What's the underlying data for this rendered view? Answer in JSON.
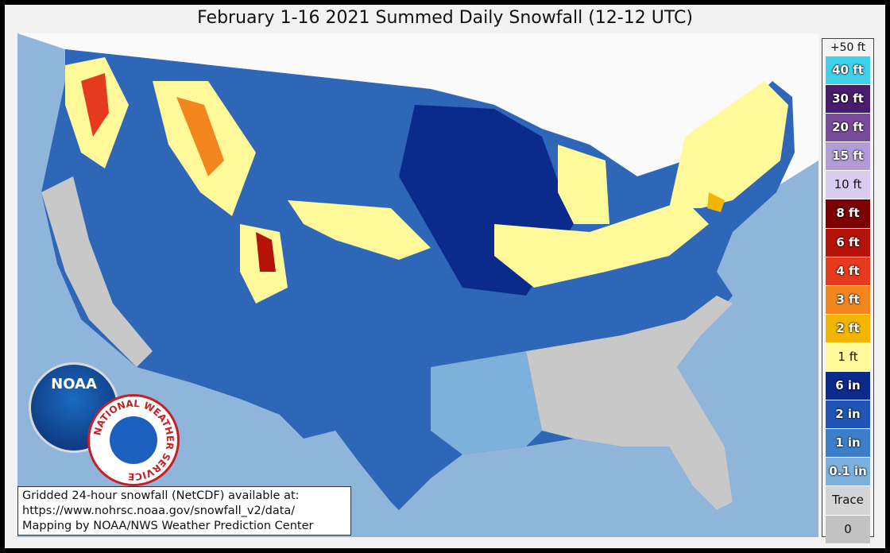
{
  "title": "February 1-16 2021 Summed Daily Snowfall (12-12 UTC)",
  "legend": {
    "top_label": "+50 ft",
    "items": [
      {
        "label": "40 ft",
        "color": "#3fd0ea"
      },
      {
        "label": "30 ft",
        "color": "#4a1c6e"
      },
      {
        "label": "20 ft",
        "color": "#7a4a9c"
      },
      {
        "label": "15 ft",
        "color": "#b39bd6"
      },
      {
        "label": "10 ft",
        "color": "#d9cdef"
      },
      {
        "label": "8 ft",
        "color": "#7d0000"
      },
      {
        "label": "6 ft",
        "color": "#b5120a"
      },
      {
        "label": "4 ft",
        "color": "#e63a1e"
      },
      {
        "label": "3 ft",
        "color": "#f3861d"
      },
      {
        "label": "2 ft",
        "color": "#f2b500"
      },
      {
        "label": "1 ft",
        "color": "#fff99a"
      },
      {
        "label": "6 in",
        "color": "#0a2a8c"
      },
      {
        "label": "2 in",
        "color": "#1f55b4"
      },
      {
        "label": "1 in",
        "color": "#3c7fc8"
      },
      {
        "label": "0.1 in",
        "color": "#7eb0dc"
      },
      {
        "label": "Trace",
        "color": "#d4d4d4"
      },
      {
        "label": "0",
        "color": "#c2c2c2"
      }
    ]
  },
  "note": {
    "lines": [
      "Gridded 24-hour snowfall (NetCDF) available at:",
      "https://www.nohrsc.noaa.gov/snowfall_v2/data/",
      "Mapping by NOAA/NWS Weather Prediction Center"
    ]
  },
  "logos": {
    "noaa": "NOAA",
    "nws": "NATIONAL WEATHER SERVICE"
  }
}
